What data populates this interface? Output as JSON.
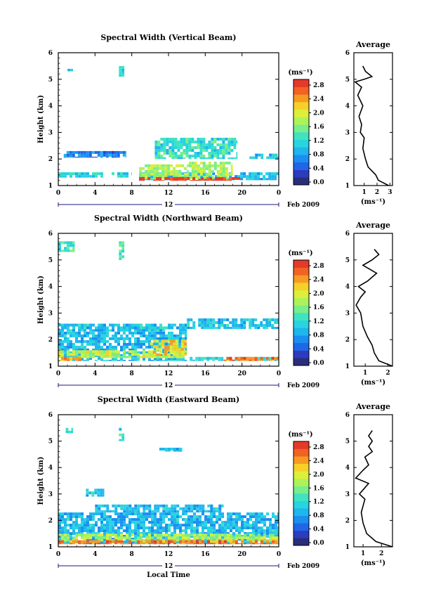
{
  "chart_data": [
    {
      "type": "heatmap",
      "title": "Spectral Width (Vertical Beam)",
      "ylabel": "Height (km)",
      "yticks": [
        "1",
        "2",
        "3",
        "4",
        "5",
        "6"
      ],
      "ylim": [
        1,
        6
      ],
      "xticks": [
        "0",
        "4",
        "8",
        "12",
        "16",
        "20",
        "0"
      ],
      "xlim": [
        0,
        24
      ],
      "date_marker": "12",
      "date_label": "Feb 2009",
      "colorbar": {
        "unit": "(ms⁻¹)",
        "ticks": [
          "2.8",
          "2.4",
          "2.0",
          "1.6",
          "1.2",
          "0.8",
          "0.4",
          "0.0"
        ],
        "range": [
          0,
          3.0
        ]
      },
      "regions": [
        {
          "x0": 1.0,
          "x1": 1.6,
          "y0": 5.3,
          "y1": 5.5,
          "v": 1.1
        },
        {
          "x0": 6.6,
          "x1": 7.2,
          "y0": 5.1,
          "y1": 5.5,
          "v": 1.3
        },
        {
          "x0": 0.6,
          "x1": 7.4,
          "y0": 2.05,
          "y1": 2.3,
          "v": 0.7
        },
        {
          "x0": 0.0,
          "x1": 8.0,
          "y0": 1.3,
          "y1": 1.5,
          "v": 1.2
        },
        {
          "x0": 8.8,
          "x1": 24.0,
          "y0": 1.2,
          "y1": 1.5,
          "v": 1.0
        },
        {
          "x0": 8.8,
          "x1": 14.2,
          "y0": 1.25,
          "y1": 1.8,
          "v": 1.8
        },
        {
          "x0": 14.2,
          "x1": 19.0,
          "y0": 1.25,
          "y1": 1.9,
          "v": 1.8
        },
        {
          "x0": 8.8,
          "x1": 19.8,
          "y0": 1.18,
          "y1": 1.32,
          "v": 2.9
        },
        {
          "x0": 10.5,
          "x1": 19.5,
          "y0": 2.0,
          "y1": 2.8,
          "v": 1.3
        },
        {
          "x0": 20.5,
          "x1": 24.0,
          "y0": 2.0,
          "y1": 2.2,
          "v": 1.0
        }
      ],
      "profile": {
        "title": "Average",
        "xlabel": "(ms⁻¹)",
        "xticks": [
          "1",
          "2",
          "3"
        ],
        "xlim": [
          0.2,
          3.2
        ],
        "ylim": [
          1,
          6
        ],
        "yticks": [
          "1",
          "2",
          "3",
          "4",
          "5",
          "6"
        ],
        "points": [
          [
            2.9,
            1.0
          ],
          [
            2.1,
            1.2
          ],
          [
            1.9,
            1.4
          ],
          [
            1.3,
            1.7
          ],
          [
            1.1,
            2.0
          ],
          [
            0.9,
            2.4
          ],
          [
            1.0,
            2.8
          ],
          [
            0.7,
            3.0
          ],
          [
            0.8,
            3.3
          ],
          [
            0.6,
            3.6
          ],
          [
            0.9,
            4.0
          ],
          [
            0.5,
            4.4
          ],
          [
            0.8,
            4.7
          ],
          [
            0.3,
            4.9
          ],
          [
            1.0,
            5.0
          ],
          [
            1.6,
            5.1
          ],
          [
            1.1,
            5.3
          ],
          [
            0.9,
            5.5
          ]
        ]
      }
    },
    {
      "type": "heatmap",
      "title": "Spectral Width (Northward Beam)",
      "ylabel": "Height (km)",
      "yticks": [
        "1",
        "2",
        "3",
        "4",
        "5",
        "6"
      ],
      "ylim": [
        1,
        6
      ],
      "xticks": [
        "0",
        "4",
        "8",
        "12",
        "16",
        "20",
        "0"
      ],
      "xlim": [
        0,
        24
      ],
      "date_marker": "12",
      "date_label": "Feb 2009",
      "colorbar": {
        "unit": "(ms⁻¹)",
        "ticks": [
          "2.8",
          "2.4",
          "2.0",
          "1.6",
          "1.2",
          "0.8",
          "0.4",
          "0.0"
        ],
        "range": [
          0,
          3.0
        ]
      },
      "regions": [
        {
          "x0": 0.0,
          "x1": 1.8,
          "y0": 5.3,
          "y1": 5.7,
          "v": 1.4
        },
        {
          "x0": 6.6,
          "x1": 7.2,
          "y0": 5.0,
          "y1": 5.7,
          "v": 1.4
        },
        {
          "x0": 0.0,
          "x1": 14.0,
          "y0": 1.2,
          "y1": 2.3,
          "v": 1.0
        },
        {
          "x0": 0.0,
          "x1": 14.0,
          "y0": 2.3,
          "y1": 2.6,
          "v": 1.1
        },
        {
          "x0": 14.0,
          "x1": 24.0,
          "y0": 2.4,
          "y1": 2.8,
          "v": 1.1
        },
        {
          "x0": 0.0,
          "x1": 14.0,
          "y0": 1.3,
          "y1": 1.6,
          "v": 1.9
        },
        {
          "x0": 0.0,
          "x1": 2.5,
          "y0": 1.2,
          "y1": 1.35,
          "v": 2.5
        },
        {
          "x0": 10.0,
          "x1": 14.0,
          "y0": 1.4,
          "y1": 2.0,
          "v": 2.2
        },
        {
          "x0": 14.0,
          "x1": 24.0,
          "y0": 1.2,
          "y1": 1.35,
          "v": 1.2
        },
        {
          "x0": 18.0,
          "x1": 24.0,
          "y0": 1.2,
          "y1": 1.35,
          "v": 2.6
        }
      ],
      "profile": {
        "title": "Average",
        "xlabel": "(ms⁻¹)",
        "xticks": [
          "1",
          "2"
        ],
        "xlim": [
          0.5,
          2.2
        ],
        "ylim": [
          1,
          6
        ],
        "yticks": [
          "1",
          "2",
          "3",
          "4",
          "5",
          "6"
        ],
        "points": [
          [
            2.2,
            1.0
          ],
          [
            1.6,
            1.2
          ],
          [
            1.4,
            1.5
          ],
          [
            1.3,
            1.8
          ],
          [
            1.1,
            2.1
          ],
          [
            0.9,
            2.5
          ],
          [
            0.8,
            3.0
          ],
          [
            0.6,
            3.3
          ],
          [
            0.8,
            3.6
          ],
          [
            1.0,
            3.8
          ],
          [
            0.7,
            4.0
          ],
          [
            1.1,
            4.2
          ],
          [
            1.5,
            4.5
          ],
          [
            0.9,
            4.8
          ],
          [
            1.3,
            5.0
          ],
          [
            1.6,
            5.2
          ],
          [
            1.4,
            5.4
          ]
        ]
      }
    },
    {
      "type": "heatmap",
      "title": "Spectral Width (Eastward Beam)",
      "ylabel": "Height (km)",
      "yticks": [
        "1",
        "2",
        "3",
        "4",
        "5",
        "6"
      ],
      "ylim": [
        1,
        6
      ],
      "xticks": [
        "0",
        "4",
        "8",
        "12",
        "16",
        "20",
        "0"
      ],
      "xlim": [
        0,
        24
      ],
      "date_marker": "12",
      "date_label": "Feb 2009",
      "xlabel": "Local Time",
      "colorbar": {
        "unit": "(ms⁻¹)",
        "ticks": [
          "2.8",
          "2.4",
          "2.0",
          "1.6",
          "1.2",
          "0.8",
          "0.4",
          "0.0"
        ],
        "range": [
          0,
          3.0
        ]
      },
      "regions": [
        {
          "x0": 0.8,
          "x1": 1.6,
          "y0": 5.3,
          "y1": 5.5,
          "v": 1.3
        },
        {
          "x0": 6.6,
          "x1": 7.2,
          "y0": 5.0,
          "y1": 5.5,
          "v": 1.3
        },
        {
          "x0": 0.0,
          "x1": 24.0,
          "y0": 1.1,
          "y1": 2.3,
          "v": 1.0
        },
        {
          "x0": 4.0,
          "x1": 18.0,
          "y0": 2.3,
          "y1": 2.6,
          "v": 1.0
        },
        {
          "x0": 0.0,
          "x1": 24.0,
          "y0": 1.2,
          "y1": 1.5,
          "v": 1.8
        },
        {
          "x0": 0.0,
          "x1": 24.0,
          "y0": 1.1,
          "y1": 1.25,
          "v": 2.6
        },
        {
          "x0": 11.0,
          "x1": 13.5,
          "y0": 4.6,
          "y1": 4.75,
          "v": 1.1
        },
        {
          "x0": 3.0,
          "x1": 5.0,
          "y0": 2.9,
          "y1": 3.2,
          "v": 1.1
        }
      ],
      "profile": {
        "title": "Average",
        "xlabel": "(ms⁻¹)",
        "xticks": [
          "1",
          "2"
        ],
        "xlim": [
          0.5,
          2.6
        ],
        "ylim": [
          1,
          6
        ],
        "yticks": [
          "1",
          "2",
          "3",
          "4",
          "5",
          "6"
        ],
        "points": [
          [
            2.6,
            1.0
          ],
          [
            1.7,
            1.2
          ],
          [
            1.2,
            1.5
          ],
          [
            1.0,
            1.9
          ],
          [
            0.9,
            2.3
          ],
          [
            1.1,
            2.8
          ],
          [
            0.8,
            3.0
          ],
          [
            1.3,
            3.4
          ],
          [
            0.6,
            3.6
          ],
          [
            1.0,
            3.9
          ],
          [
            1.3,
            4.1
          ],
          [
            1.1,
            4.4
          ],
          [
            1.5,
            4.6
          ],
          [
            1.3,
            4.8
          ],
          [
            1.5,
            5.0
          ],
          [
            1.3,
            5.2
          ],
          [
            1.5,
            5.4
          ]
        ]
      }
    }
  ],
  "colors": {
    "scale": [
      "#2a2d7a",
      "#2c3cbf",
      "#1f66e8",
      "#1a8ff0",
      "#1fb5ee",
      "#27d4e0",
      "#3fe3c0",
      "#78ee8c",
      "#aef25a",
      "#dcef3a",
      "#f6d028",
      "#f79a22",
      "#f26222",
      "#e53a2a"
    ]
  }
}
